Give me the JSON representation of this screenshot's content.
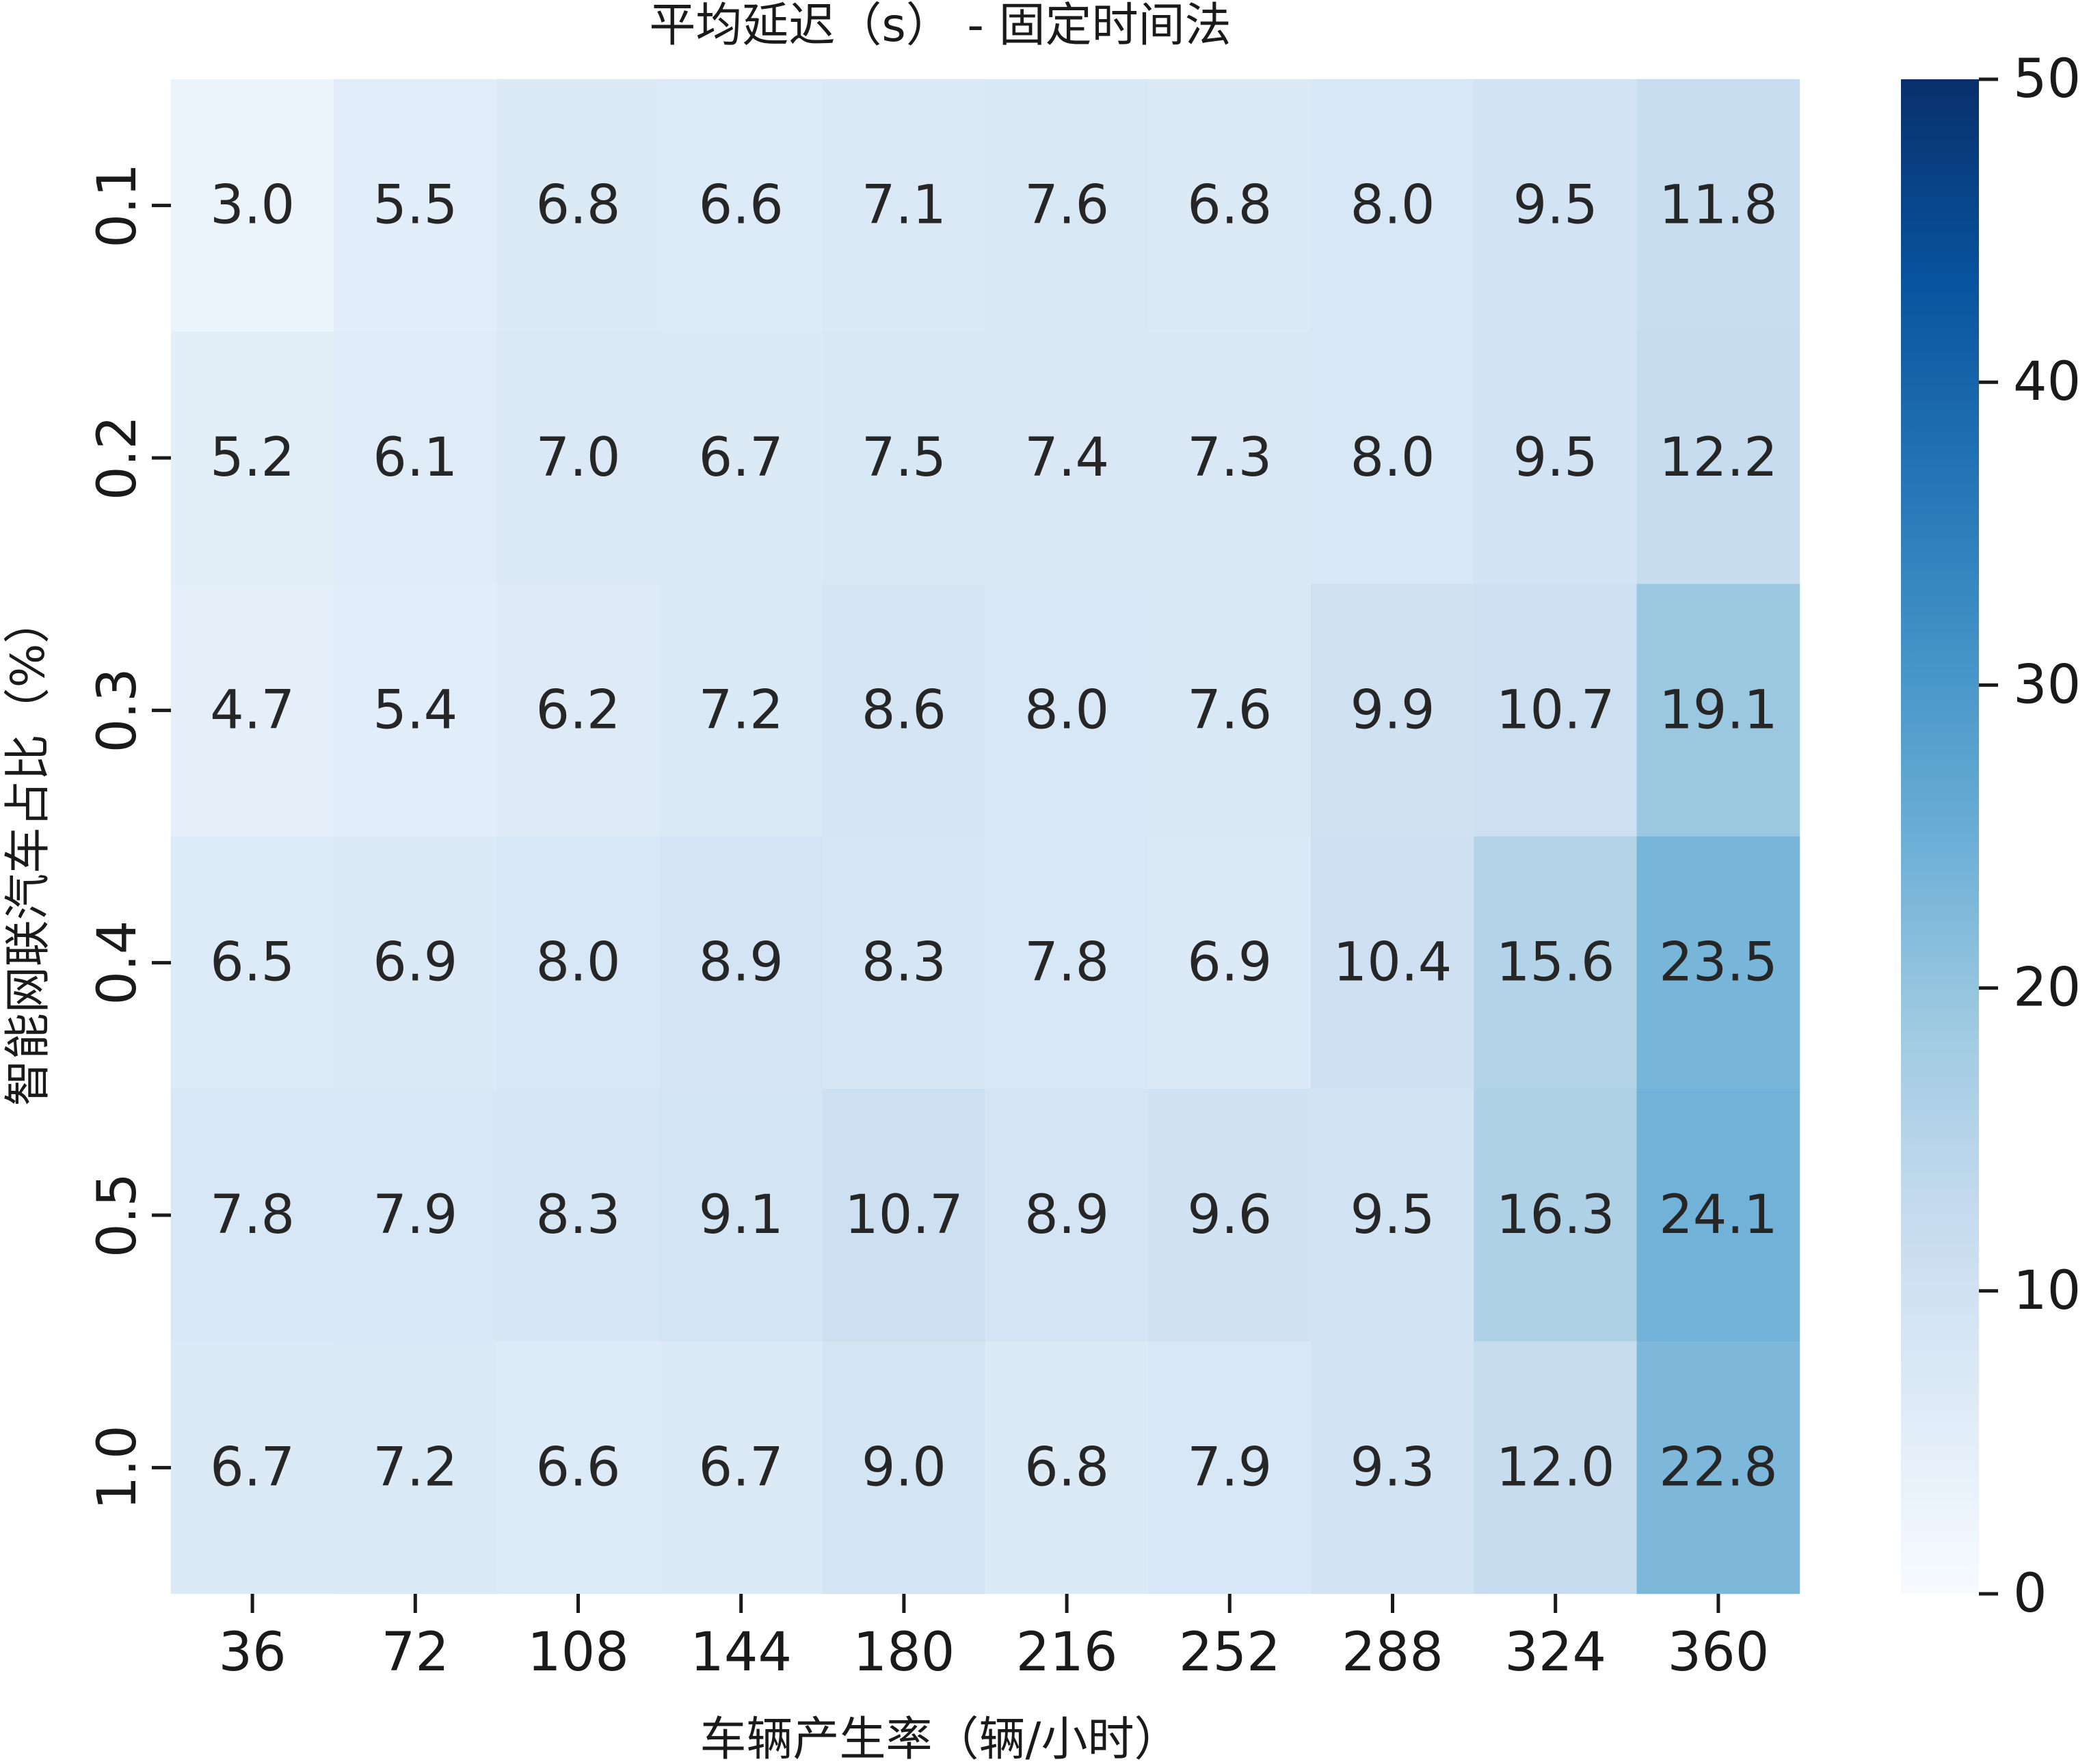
{
  "chart_data": {
    "type": "heatmap",
    "title": "平均延迟（s） - 固定时间法",
    "xlabel": "车辆产生率（辆/小时）",
    "ylabel": "智能网联汽车占比（%）",
    "x_categories": [
      "36",
      "72",
      "108",
      "144",
      "180",
      "216",
      "252",
      "288",
      "324",
      "360"
    ],
    "y_categories": [
      "0.1",
      "0.2",
      "0.3",
      "0.4",
      "0.5",
      "1.0"
    ],
    "values": [
      [
        3.0,
        5.5,
        6.8,
        6.6,
        7.1,
        7.6,
        6.8,
        8.0,
        9.5,
        11.8
      ],
      [
        5.2,
        6.1,
        7.0,
        6.7,
        7.5,
        7.4,
        7.3,
        8.0,
        9.5,
        12.2
      ],
      [
        4.7,
        5.4,
        6.2,
        7.2,
        8.6,
        8.0,
        7.6,
        9.9,
        10.7,
        19.1
      ],
      [
        6.5,
        6.9,
        8.0,
        8.9,
        8.3,
        7.8,
        6.9,
        10.4,
        15.6,
        23.5
      ],
      [
        7.8,
        7.9,
        8.3,
        9.1,
        10.7,
        8.9,
        9.6,
        9.5,
        16.3,
        24.1
      ],
      [
        6.7,
        7.2,
        6.6,
        6.7,
        9.0,
        6.8,
        7.9,
        9.3,
        12.0,
        22.8
      ]
    ],
    "value_format": "0.0",
    "colormap": "Blues",
    "colormap_stops": [
      "#f7fbff",
      "#deebf7",
      "#c6dbef",
      "#9ecae1",
      "#6baed6",
      "#4292c6",
      "#2171b5",
      "#08519c",
      "#08306b"
    ],
    "vmin": 0,
    "vmax": 50,
    "colorbar_ticks": [
      0,
      10,
      20,
      30,
      40,
      50
    ],
    "grid": false
  }
}
